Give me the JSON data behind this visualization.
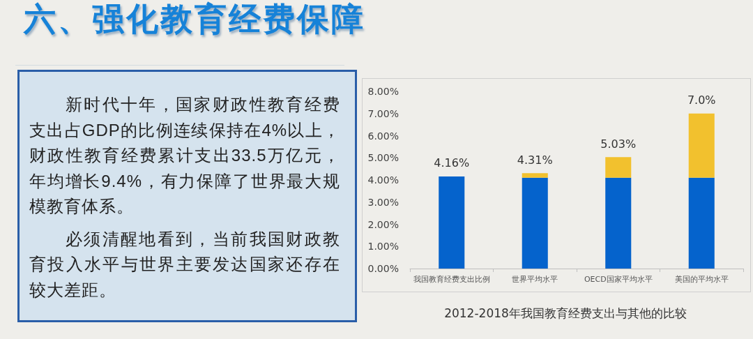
{
  "chart_data": [
    {
      "type": "other",
      "title": "六、强化教育经费保障",
      "annotations": [
        "新时代十年，国家财政性教育经费支出占GDP的比例连续保持在4%以上，财政性教育经费累计支出33.5万亿元，年均增长9.4%，有力保障了世界最大规模教育体系。",
        "必须清醒地看到，当前我国财政教育投入水平与世界主要发达国家还存在较大差距。"
      ]
    },
    {
      "type": "bar",
      "title": "2012-2018年我国教育经费支出与其他的比较",
      "categories": [
        "我国教育经费支出比例",
        "世界平均水平",
        "OECD国家平均水平",
        "美国的平均水平"
      ],
      "stacked": true,
      "series": [
        {
          "color": "#0563cc",
          "values": [
            4.16,
            4.1,
            4.1,
            4.1
          ]
        },
        {
          "color": "#f2c12e",
          "values": [
            null,
            0.21,
            0.93,
            2.9
          ]
        }
      ],
      "totals": [
        "4.16%",
        "4.31%",
        "5.03%",
        "7.0%"
      ],
      "ylim": [
        0,
        8
      ],
      "yticks": [
        {
          "value": 0,
          "label": "0.00%"
        },
        {
          "value": 1,
          "label": "1.00%"
        },
        {
          "value": 2,
          "label": "2.00%"
        },
        {
          "value": 3,
          "label": "3.00%"
        },
        {
          "value": 4,
          "label": "4.00%"
        },
        {
          "value": 5,
          "label": "5.00%"
        },
        {
          "value": 6,
          "label": "6.00%"
        },
        {
          "value": 7,
          "label": "7.00%"
        },
        {
          "value": 8,
          "label": "8.00%"
        }
      ],
      "grid": false
    }
  ]
}
